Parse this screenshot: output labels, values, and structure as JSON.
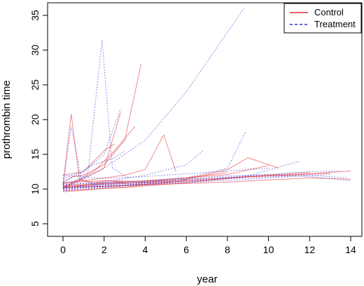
{
  "chart_data": {
    "type": "line",
    "title": "",
    "xlabel": "year",
    "ylabel": "prothrombin time",
    "xlim": [
      0,
      14
    ],
    "ylim": [
      5,
      36
    ],
    "x_ticks": [
      "0",
      "2",
      "4",
      "6",
      "8",
      "10",
      "12",
      "14"
    ],
    "y_ticks": [
      "5",
      "10",
      "15",
      "20",
      "25",
      "30",
      "35"
    ],
    "grid": false,
    "legend_position": "top-right",
    "series": [
      {
        "name": "Control",
        "color": "#e8282b",
        "line_style": "solid",
        "values": [
          {
            "x": [
              0.0,
              0.4,
              0.8,
              1.5,
              2.2,
              3.0
            ],
            "y": [
              10.6,
              20.8,
              11.4,
              10.9,
              11.2,
              11.0
            ]
          },
          {
            "x": [
              0.0,
              0.5,
              1.0,
              2.0,
              3.0,
              3.8
            ],
            "y": [
              11.0,
              11.8,
              12.0,
              13.5,
              17.0,
              28.0
            ]
          },
          {
            "x": [
              0.0,
              1.0,
              2.0,
              2.8
            ],
            "y": [
              10.2,
              11.5,
              13.0,
              21.0
            ]
          },
          {
            "x": [
              0.0,
              1.0,
              2.0,
              3.0,
              4.0,
              4.9,
              5.5
            ],
            "y": [
              10.8,
              11.2,
              11.6,
              12.0,
              12.8,
              17.8,
              12.5
            ]
          },
          {
            "x": [
              0.0,
              1.0,
              2.0,
              3.0,
              4.0,
              5.0,
              6.0,
              7.0,
              8.0
            ],
            "y": [
              10.4,
              10.6,
              10.9,
              11.0,
              11.2,
              11.4,
              11.6,
              12.0,
              12.4
            ]
          },
          {
            "x": [
              0.0,
              2.0,
              4.0,
              6.0,
              8.0,
              10.0,
              12.0,
              14.0
            ],
            "y": [
              10.5,
              10.8,
              11.0,
              11.3,
              11.6,
              11.9,
              12.2,
              12.6
            ]
          },
          {
            "x": [
              0.0,
              1.0,
              3.0,
              5.0,
              7.0,
              9.0,
              11.0,
              13.0
            ],
            "y": [
              10.1,
              10.5,
              10.8,
              11.0,
              11.3,
              11.8,
              12.0,
              12.3
            ]
          },
          {
            "x": [
              0.0,
              0.5,
              1.5,
              2.5,
              3.5
            ],
            "y": [
              10.0,
              11.0,
              12.5,
              15.5,
              19.0
            ]
          },
          {
            "x": [
              0.0,
              2.0,
              4.0,
              6.0,
              8.0,
              9.0,
              10.5
            ],
            "y": [
              10.3,
              10.4,
              10.7,
              11.4,
              12.8,
              14.5,
              13.0
            ]
          },
          {
            "x": [
              0.0,
              3.0,
              6.0,
              9.0,
              12.0
            ],
            "y": [
              9.8,
              10.2,
              10.9,
              11.8,
              12.4
            ]
          },
          {
            "x": [
              0.0,
              1.0,
              2.0,
              2.5
            ],
            "y": [
              12.0,
              12.5,
              15.5,
              16.5
            ]
          },
          {
            "x": [
              0.0,
              2.0,
              4.0,
              6.0,
              8.0,
              10.0
            ],
            "y": [
              10.9,
              11.2,
              11.1,
              11.6,
              12.1,
              13.4
            ]
          },
          {
            "x": [
              0.0,
              4.0,
              8.0,
              12.0,
              14.0
            ],
            "y": [
              10.2,
              10.6,
              11.0,
              11.6,
              11.4
            ]
          },
          {
            "x": [
              0.0,
              1.0,
              2.0,
              3.0,
              4.0,
              5.0,
              6.0
            ],
            "y": [
              9.6,
              9.8,
              10.1,
              10.3,
              10.6,
              10.9,
              11.2
            ]
          }
        ]
      },
      {
        "name": "Treatment",
        "color": "#2b2bd9",
        "line_style": "dashed",
        "values": [
          {
            "x": [
              0.0,
              0.4,
              0.9,
              1.5,
              2.0,
              2.8
            ],
            "y": [
              10.5,
              19.0,
              11.3,
              10.6,
              10.8,
              11.0
            ]
          },
          {
            "x": [
              0.0,
              0.6,
              1.2,
              1.9,
              2.4,
              3.2
            ],
            "y": [
              10.4,
              11.0,
              12.0,
              31.5,
              13.0,
              11.6
            ]
          },
          {
            "x": [
              0.0,
              1.0,
              2.0,
              4.0,
              6.0,
              8.8
            ],
            "y": [
              10.8,
              11.5,
              13.0,
              17.0,
              24.0,
              36.0
            ]
          },
          {
            "x": [
              0.0,
              1.0,
              2.0,
              2.8
            ],
            "y": [
              11.0,
              12.5,
              15.0,
              21.5
            ]
          },
          {
            "x": [
              0.0,
              2.0,
              4.0,
              6.0,
              6.8
            ],
            "y": [
              10.6,
              11.0,
              12.0,
              13.5,
              15.5
            ]
          },
          {
            "x": [
              0.0,
              2.0,
              4.0,
              6.0,
              8.0,
              8.9
            ],
            "y": [
              10.2,
              10.6,
              11.0,
              11.6,
              13.0,
              18.3
            ]
          },
          {
            "x": [
              0.0,
              2.0,
              4.0,
              6.0,
              8.0,
              10.0,
              12.0,
              13.5
            ],
            "y": [
              10.3,
              10.7,
              11.0,
              11.4,
              11.7,
              12.1,
              12.5,
              12.6
            ]
          },
          {
            "x": [
              0.0,
              1.0,
              3.0,
              5.0,
              7.0,
              9.0,
              11.0,
              13.0
            ],
            "y": [
              9.9,
              10.2,
              10.5,
              10.8,
              11.1,
              11.4,
              11.8,
              12.1
            ]
          },
          {
            "x": [
              0.0,
              3.0,
              6.0,
              9.0,
              11.5
            ],
            "y": [
              10.0,
              10.5,
              11.0,
              11.9,
              14.0
            ]
          },
          {
            "x": [
              0.0,
              0.5,
              1.5,
              2.5,
              3.0
            ],
            "y": [
              11.5,
              12.0,
              13.5,
              14.5,
              15.5
            ]
          },
          {
            "x": [
              0.0,
              2.0,
              4.0,
              6.0,
              8.0,
              10.0,
              12.0,
              14.0
            ],
            "y": [
              10.7,
              10.9,
              11.2,
              11.5,
              11.9,
              12.1,
              11.8,
              11.2
            ]
          },
          {
            "x": [
              0.0,
              1.0,
              2.0,
              3.0,
              4.0,
              5.0
            ],
            "y": [
              9.7,
              10.0,
              10.2,
              10.5,
              10.9,
              11.3
            ]
          },
          {
            "x": [
              0.0,
              2.0,
              4.0,
              6.0,
              8.0,
              10.0
            ],
            "y": [
              12.0,
              11.5,
              11.8,
              12.2,
              12.6,
              13.0
            ]
          },
          {
            "x": [
              0.0,
              4.0,
              8.0,
              12.0,
              13.8
            ],
            "y": [
              10.1,
              10.8,
              11.5,
              12.0,
              11.6
            ]
          }
        ]
      }
    ]
  }
}
